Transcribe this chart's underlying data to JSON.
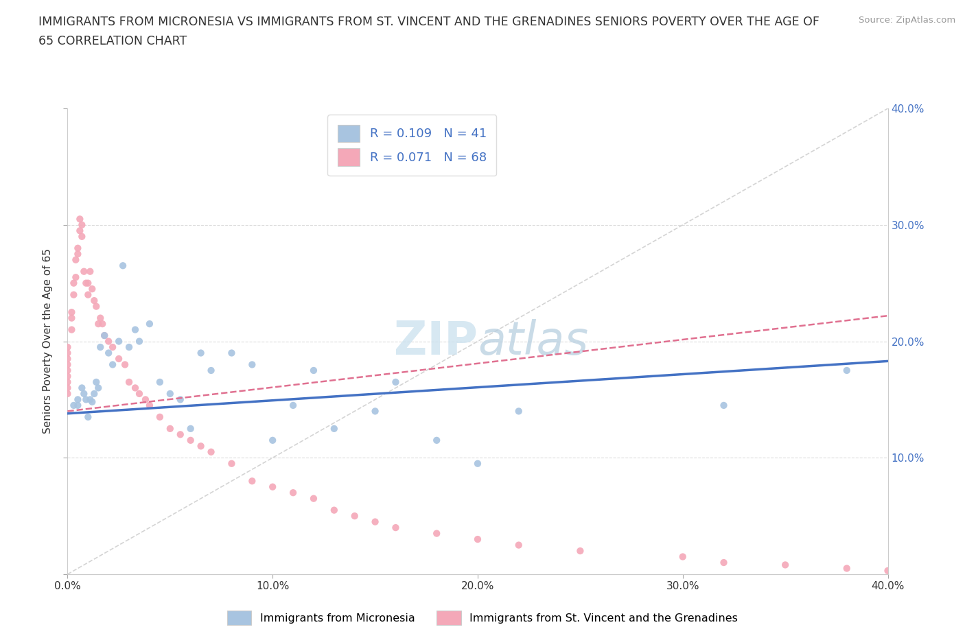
{
  "title_line1": "IMMIGRANTS FROM MICRONESIA VS IMMIGRANTS FROM ST. VINCENT AND THE GRENADINES SENIORS POVERTY OVER THE AGE OF",
  "title_line2": "65 CORRELATION CHART",
  "source_text": "Source: ZipAtlas.com",
  "ylabel": "Seniors Poverty Over the Age of 65",
  "xlim": [
    0.0,
    0.4
  ],
  "ylim": [
    0.0,
    0.4
  ],
  "xticks": [
    0.0,
    0.1,
    0.2,
    0.3,
    0.4
  ],
  "yticks": [
    0.0,
    0.1,
    0.2,
    0.3,
    0.4
  ],
  "xticklabels": [
    "0.0%",
    "10.0%",
    "20.0%",
    "30.0%",
    "40.0%"
  ],
  "left_yticklabels": [
    "",
    "",
    "",
    "",
    ""
  ],
  "right_yticklabels": [
    "",
    "10.0%",
    "20.0%",
    "30.0%",
    "40.0%"
  ],
  "R_micronesia": 0.109,
  "N_micronesia": 41,
  "R_stvincent": 0.071,
  "N_stvincent": 68,
  "color_micronesia": "#a8c4e0",
  "color_stvincent": "#f4a8b8",
  "line_color_micronesia": "#4472c4",
  "line_color_stvincent": "#e07090",
  "diag_color": "#d0d0d0",
  "watermark_color": "#d0e4f0",
  "legend_label_micronesia": "Immigrants from Micronesia",
  "legend_label_stvincent": "Immigrants from St. Vincent and the Grenadines",
  "mic_trend": [
    0.0,
    0.4,
    0.138,
    0.183
  ],
  "stv_trend": [
    0.0,
    0.4,
    0.14,
    0.222
  ],
  "micronesia_x": [
    0.003,
    0.005,
    0.005,
    0.007,
    0.008,
    0.009,
    0.01,
    0.011,
    0.012,
    0.013,
    0.014,
    0.015,
    0.016,
    0.018,
    0.02,
    0.022,
    0.025,
    0.027,
    0.03,
    0.033,
    0.035,
    0.04,
    0.045,
    0.05,
    0.055,
    0.06,
    0.065,
    0.07,
    0.08,
    0.09,
    0.1,
    0.11,
    0.12,
    0.13,
    0.15,
    0.16,
    0.18,
    0.2,
    0.22,
    0.32,
    0.38
  ],
  "micronesia_y": [
    0.145,
    0.15,
    0.145,
    0.16,
    0.155,
    0.15,
    0.135,
    0.15,
    0.148,
    0.155,
    0.165,
    0.16,
    0.195,
    0.205,
    0.19,
    0.18,
    0.2,
    0.265,
    0.195,
    0.21,
    0.2,
    0.215,
    0.165,
    0.155,
    0.15,
    0.125,
    0.19,
    0.175,
    0.19,
    0.18,
    0.115,
    0.145,
    0.175,
    0.125,
    0.14,
    0.165,
    0.115,
    0.095,
    0.14,
    0.145,
    0.175
  ],
  "stvincent_x": [
    0.0,
    0.0,
    0.0,
    0.0,
    0.0,
    0.0,
    0.0,
    0.0,
    0.0,
    0.002,
    0.002,
    0.002,
    0.003,
    0.003,
    0.004,
    0.004,
    0.005,
    0.005,
    0.006,
    0.006,
    0.007,
    0.007,
    0.008,
    0.009,
    0.01,
    0.01,
    0.011,
    0.012,
    0.013,
    0.014,
    0.015,
    0.016,
    0.017,
    0.018,
    0.02,
    0.022,
    0.025,
    0.028,
    0.03,
    0.033,
    0.035,
    0.038,
    0.04,
    0.045,
    0.05,
    0.055,
    0.06,
    0.065,
    0.07,
    0.08,
    0.09,
    0.1,
    0.11,
    0.12,
    0.13,
    0.14,
    0.15,
    0.16,
    0.18,
    0.2,
    0.22,
    0.25,
    0.3,
    0.32,
    0.35,
    0.38,
    0.4,
    0.42
  ],
  "stvincent_y": [
    0.155,
    0.16,
    0.165,
    0.17,
    0.175,
    0.18,
    0.185,
    0.19,
    0.195,
    0.21,
    0.22,
    0.225,
    0.24,
    0.25,
    0.255,
    0.27,
    0.275,
    0.28,
    0.295,
    0.305,
    0.29,
    0.3,
    0.26,
    0.25,
    0.24,
    0.25,
    0.26,
    0.245,
    0.235,
    0.23,
    0.215,
    0.22,
    0.215,
    0.205,
    0.2,
    0.195,
    0.185,
    0.18,
    0.165,
    0.16,
    0.155,
    0.15,
    0.145,
    0.135,
    0.125,
    0.12,
    0.115,
    0.11,
    0.105,
    0.095,
    0.08,
    0.075,
    0.07,
    0.065,
    0.055,
    0.05,
    0.045,
    0.04,
    0.035,
    0.03,
    0.025,
    0.02,
    0.015,
    0.01,
    0.008,
    0.005,
    0.003,
    0.002
  ]
}
